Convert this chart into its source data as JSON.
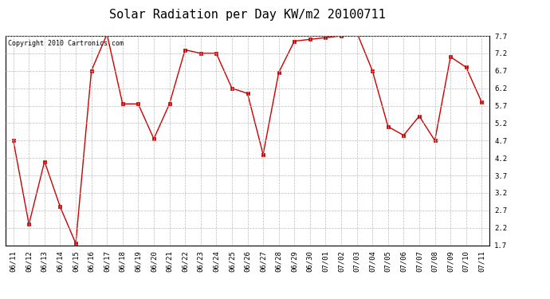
{
  "title": "Solar Radiation per Day KW/m2 20100711",
  "copyright_text": "Copyright 2010 Cartronics.com",
  "labels": [
    "06/11",
    "06/12",
    "06/13",
    "06/14",
    "06/15",
    "06/16",
    "06/17",
    "06/18",
    "06/19",
    "06/20",
    "06/21",
    "06/22",
    "06/23",
    "06/24",
    "06/25",
    "06/26",
    "06/27",
    "06/28",
    "06/29",
    "06/30",
    "07/01",
    "07/02",
    "07/03",
    "07/04",
    "07/05",
    "07/06",
    "07/07",
    "07/08",
    "07/09",
    "07/10",
    "07/11"
  ],
  "values": [
    4.7,
    2.3,
    4.1,
    2.8,
    1.75,
    6.7,
    7.75,
    5.75,
    5.75,
    4.75,
    5.75,
    7.3,
    7.2,
    7.2,
    6.2,
    6.05,
    4.3,
    6.65,
    7.55,
    7.6,
    7.65,
    7.7,
    7.8,
    6.7,
    5.1,
    4.85,
    5.4,
    4.7,
    7.1,
    6.8,
    5.8
  ],
  "line_color": "#cc0000",
  "marker": "s",
  "marker_size": 2.5,
  "marker_color": "#cc0000",
  "background_color": "#ffffff",
  "plot_background": "#ffffff",
  "grid_color": "#bbbbbb",
  "ylim": [
    1.7,
    7.7
  ],
  "yticks": [
    1.7,
    2.2,
    2.7,
    3.2,
    3.7,
    4.2,
    4.7,
    5.2,
    5.7,
    6.2,
    6.7,
    7.2,
    7.7
  ],
  "title_fontsize": 11,
  "tick_fontsize": 6.5,
  "copyright_fontsize": 6
}
